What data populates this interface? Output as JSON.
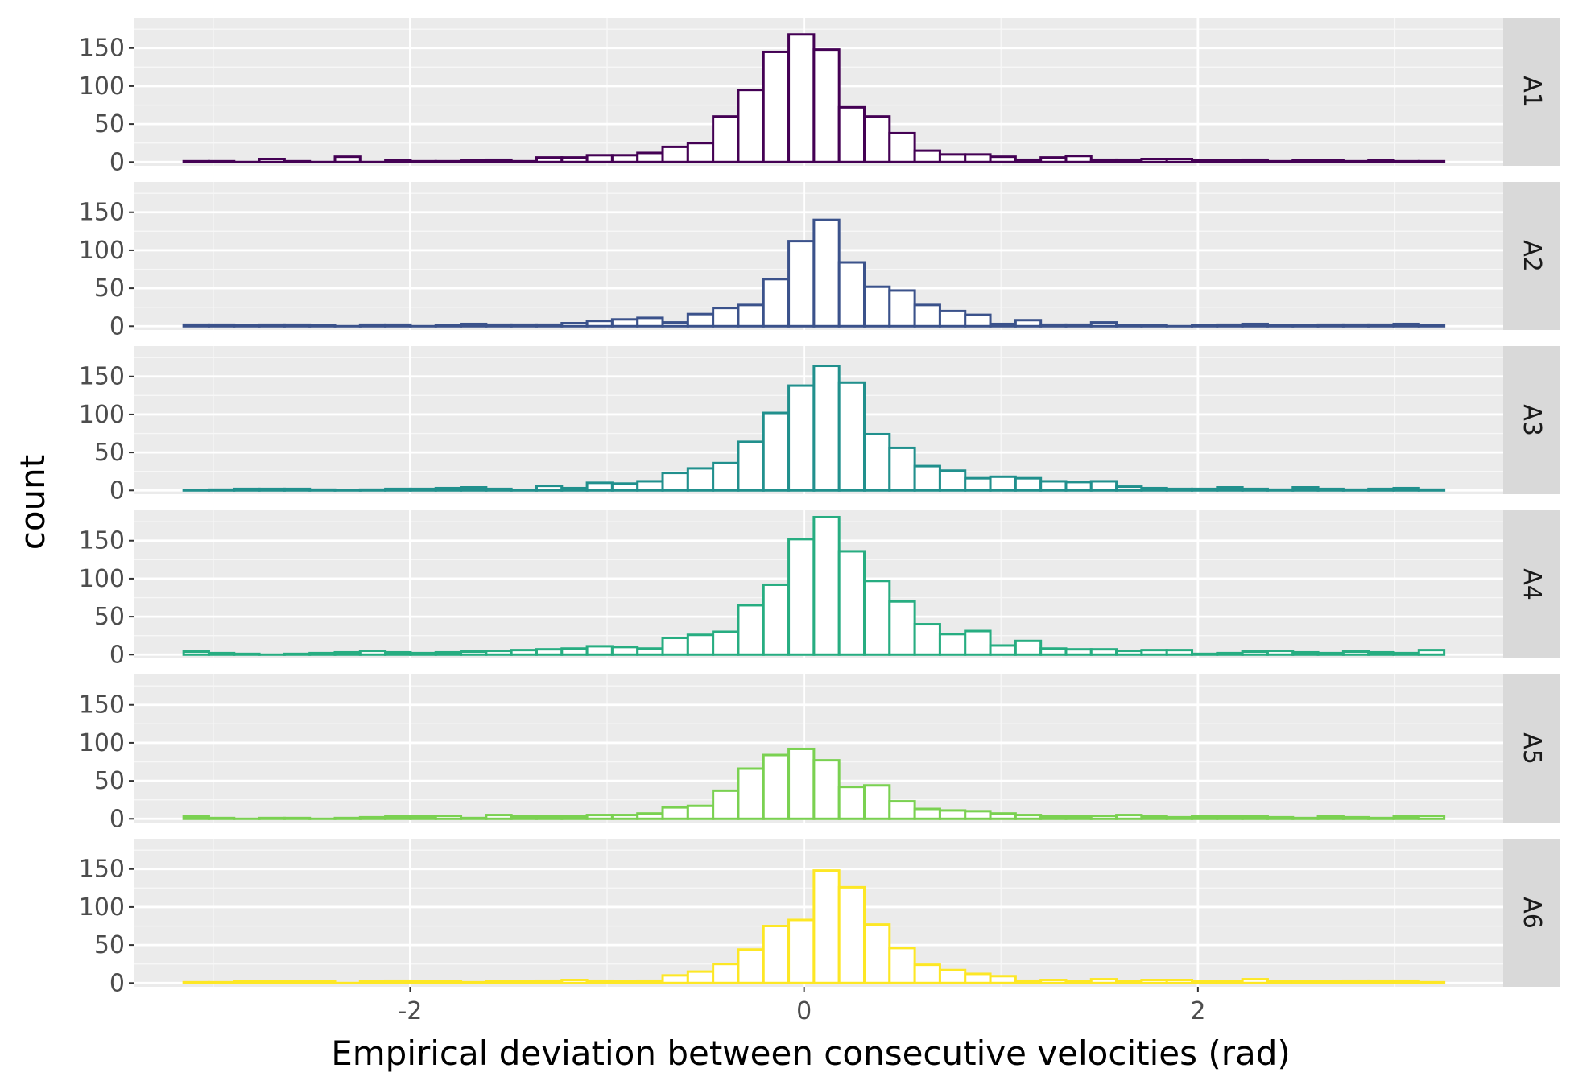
{
  "chart_data": {
    "type": "histogram-facets",
    "xlabel": "Empirical deviation between consecutive velocities (rad)",
    "ylabel": "count",
    "xlim": [
      -3.4,
      3.55
    ],
    "ylim": [
      -5,
      190
    ],
    "x_ticks": [
      -2,
      0,
      2
    ],
    "x_tick_labels": [
      "-2",
      "0",
      "2"
    ],
    "y_ticks": [
      0,
      50,
      100,
      150
    ],
    "y_tick_labels": [
      "0",
      "50",
      "100",
      "150"
    ],
    "grid": true,
    "bin_start": -3.15,
    "bin_width": 0.128,
    "fill_color": "#ffffff",
    "panel_background": "#ebebeb",
    "strip_background": "#d9d9d9",
    "series": [
      {
        "name": "A1",
        "color": "#440154",
        "values": [
          1,
          1,
          0,
          4,
          1,
          0,
          7,
          0,
          2,
          1,
          1,
          2,
          3,
          1,
          6,
          6,
          9,
          9,
          12,
          20,
          25,
          60,
          95,
          145,
          168,
          148,
          72,
          60,
          38,
          15,
          10,
          10,
          7,
          3,
          6,
          8,
          3,
          3,
          4,
          4,
          2,
          2,
          3,
          1,
          2,
          2,
          1,
          2,
          1,
          1
        ]
      },
      {
        "name": "A2",
        "color": "#3b528b",
        "values": [
          2,
          2,
          1,
          2,
          2,
          1,
          0,
          2,
          2,
          0,
          1,
          3,
          2,
          2,
          2,
          4,
          7,
          9,
          11,
          5,
          16,
          24,
          28,
          62,
          112,
          140,
          84,
          52,
          47,
          28,
          20,
          15,
          3,
          8,
          2,
          2,
          5,
          1,
          1,
          0,
          1,
          2,
          3,
          1,
          1,
          2,
          2,
          2,
          3,
          1
        ]
      },
      {
        "name": "A3",
        "color": "#21908d",
        "values": [
          0,
          1,
          2,
          2,
          2,
          1,
          0,
          1,
          2,
          2,
          3,
          4,
          2,
          0,
          6,
          3,
          10,
          9,
          12,
          23,
          29,
          36,
          64,
          102,
          138,
          164,
          142,
          74,
          56,
          32,
          26,
          16,
          18,
          16,
          12,
          11,
          12,
          5,
          3,
          2,
          2,
          4,
          2,
          1,
          4,
          2,
          1,
          2,
          3,
          1
        ]
      },
      {
        "name": "A4",
        "color": "#27ad81",
        "values": [
          4,
          2,
          1,
          0,
          1,
          2,
          3,
          5,
          3,
          2,
          3,
          4,
          5,
          6,
          7,
          8,
          11,
          10,
          8,
          22,
          26,
          30,
          65,
          92,
          152,
          181,
          136,
          97,
          70,
          40,
          27,
          31,
          12,
          18,
          8,
          7,
          7,
          5,
          6,
          6,
          1,
          2,
          4,
          5,
          3,
          2,
          4,
          3,
          2,
          6
        ]
      },
      {
        "name": "A5",
        "color": "#7ad151",
        "values": [
          3,
          1,
          0,
          1,
          1,
          0,
          1,
          2,
          3,
          3,
          4,
          1,
          5,
          3,
          3,
          3,
          5,
          5,
          7,
          15,
          17,
          37,
          66,
          84,
          92,
          77,
          42,
          44,
          23,
          13,
          11,
          10,
          7,
          5,
          3,
          3,
          4,
          5,
          3,
          2,
          3,
          3,
          3,
          2,
          1,
          3,
          2,
          1,
          3,
          4
        ]
      },
      {
        "name": "A6",
        "color": "#fde725",
        "values": [
          1,
          1,
          2,
          2,
          2,
          2,
          0,
          2,
          3,
          2,
          2,
          1,
          2,
          2,
          3,
          4,
          3,
          2,
          3,
          10,
          15,
          25,
          44,
          75,
          83,
          148,
          126,
          77,
          46,
          24,
          17,
          12,
          9,
          3,
          4,
          2,
          5,
          2,
          4,
          4,
          2,
          2,
          5,
          2,
          2,
          2,
          3,
          3,
          3,
          1
        ]
      }
    ]
  }
}
